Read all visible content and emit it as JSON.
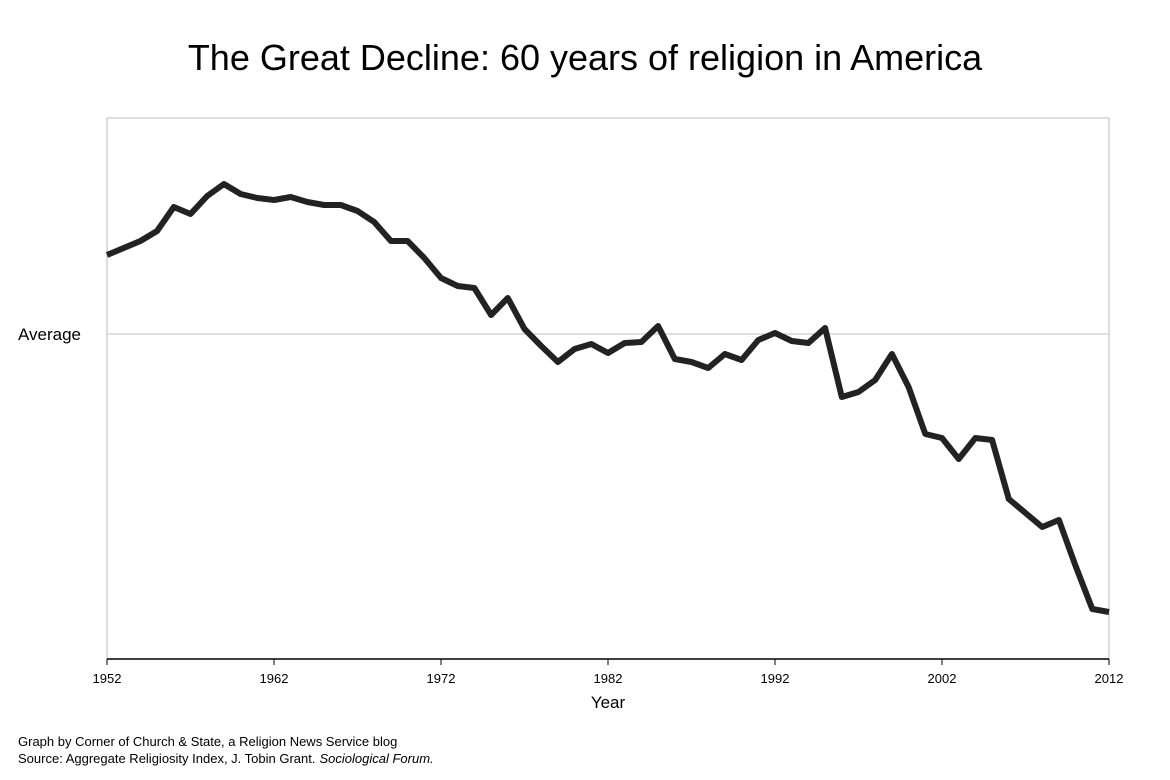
{
  "chart_data": {
    "type": "line",
    "title": "The Great Decline: 60 years of religion in America",
    "x_label": "Year",
    "x": [
      1952,
      1953,
      1954,
      1955,
      1956,
      1957,
      1958,
      1959,
      1960,
      1961,
      1962,
      1963,
      1964,
      1965,
      1966,
      1967,
      1968,
      1969,
      1970,
      1971,
      1972,
      1973,
      1974,
      1975,
      1976,
      1977,
      1978,
      1979,
      1980,
      1981,
      1982,
      1983,
      1984,
      1985,
      1986,
      1987,
      1988,
      1989,
      1990,
      1991,
      1992,
      1993,
      1994,
      1995,
      1996,
      1997,
      1998,
      1999,
      2000,
      2001,
      2002,
      2003,
      2004,
      2005,
      2006,
      2007,
      2008,
      2009,
      2010,
      2011,
      2012
    ],
    "values": [
      0.79,
      0.86,
      0.93,
      1.03,
      1.27,
      1.2,
      1.38,
      1.5,
      1.4,
      1.36,
      1.34,
      1.37,
      1.32,
      1.29,
      1.29,
      1.23,
      1.12,
      0.93,
      0.93,
      0.76,
      0.56,
      0.48,
      0.46,
      0.19,
      0.36,
      0.05,
      -0.12,
      -0.28,
      -0.15,
      -0.1,
      -0.19,
      -0.09,
      -0.08,
      0.08,
      -0.25,
      -0.28,
      -0.34,
      -0.2,
      -0.26,
      -0.06,
      0.01,
      -0.07,
      -0.09,
      0.06,
      -0.63,
      -0.58,
      -0.46,
      -0.2,
      -0.53,
      -1.0,
      -1.04,
      -1.25,
      -1.04,
      -1.06,
      -1.65,
      -1.79,
      -1.93,
      -1.86,
      -2.32,
      -2.75,
      -2.78
    ],
    "color": "#222222",
    "xlim": [
      1952,
      2012
    ],
    "xticks": [
      1952,
      1962,
      1972,
      1982,
      1992,
      2002,
      2012
    ],
    "ylim": [
      -3.25,
      2.16
    ],
    "yticks": [
      {
        "value": 0,
        "label": "Average"
      }
    ],
    "grid": true,
    "credit": "Graph by Corner of Church & State, a Religion News Service blog",
    "source": "Source: Aggregate Religiosity Index, J. Tobin Grant.",
    "source_italic": "Sociological Forum."
  }
}
